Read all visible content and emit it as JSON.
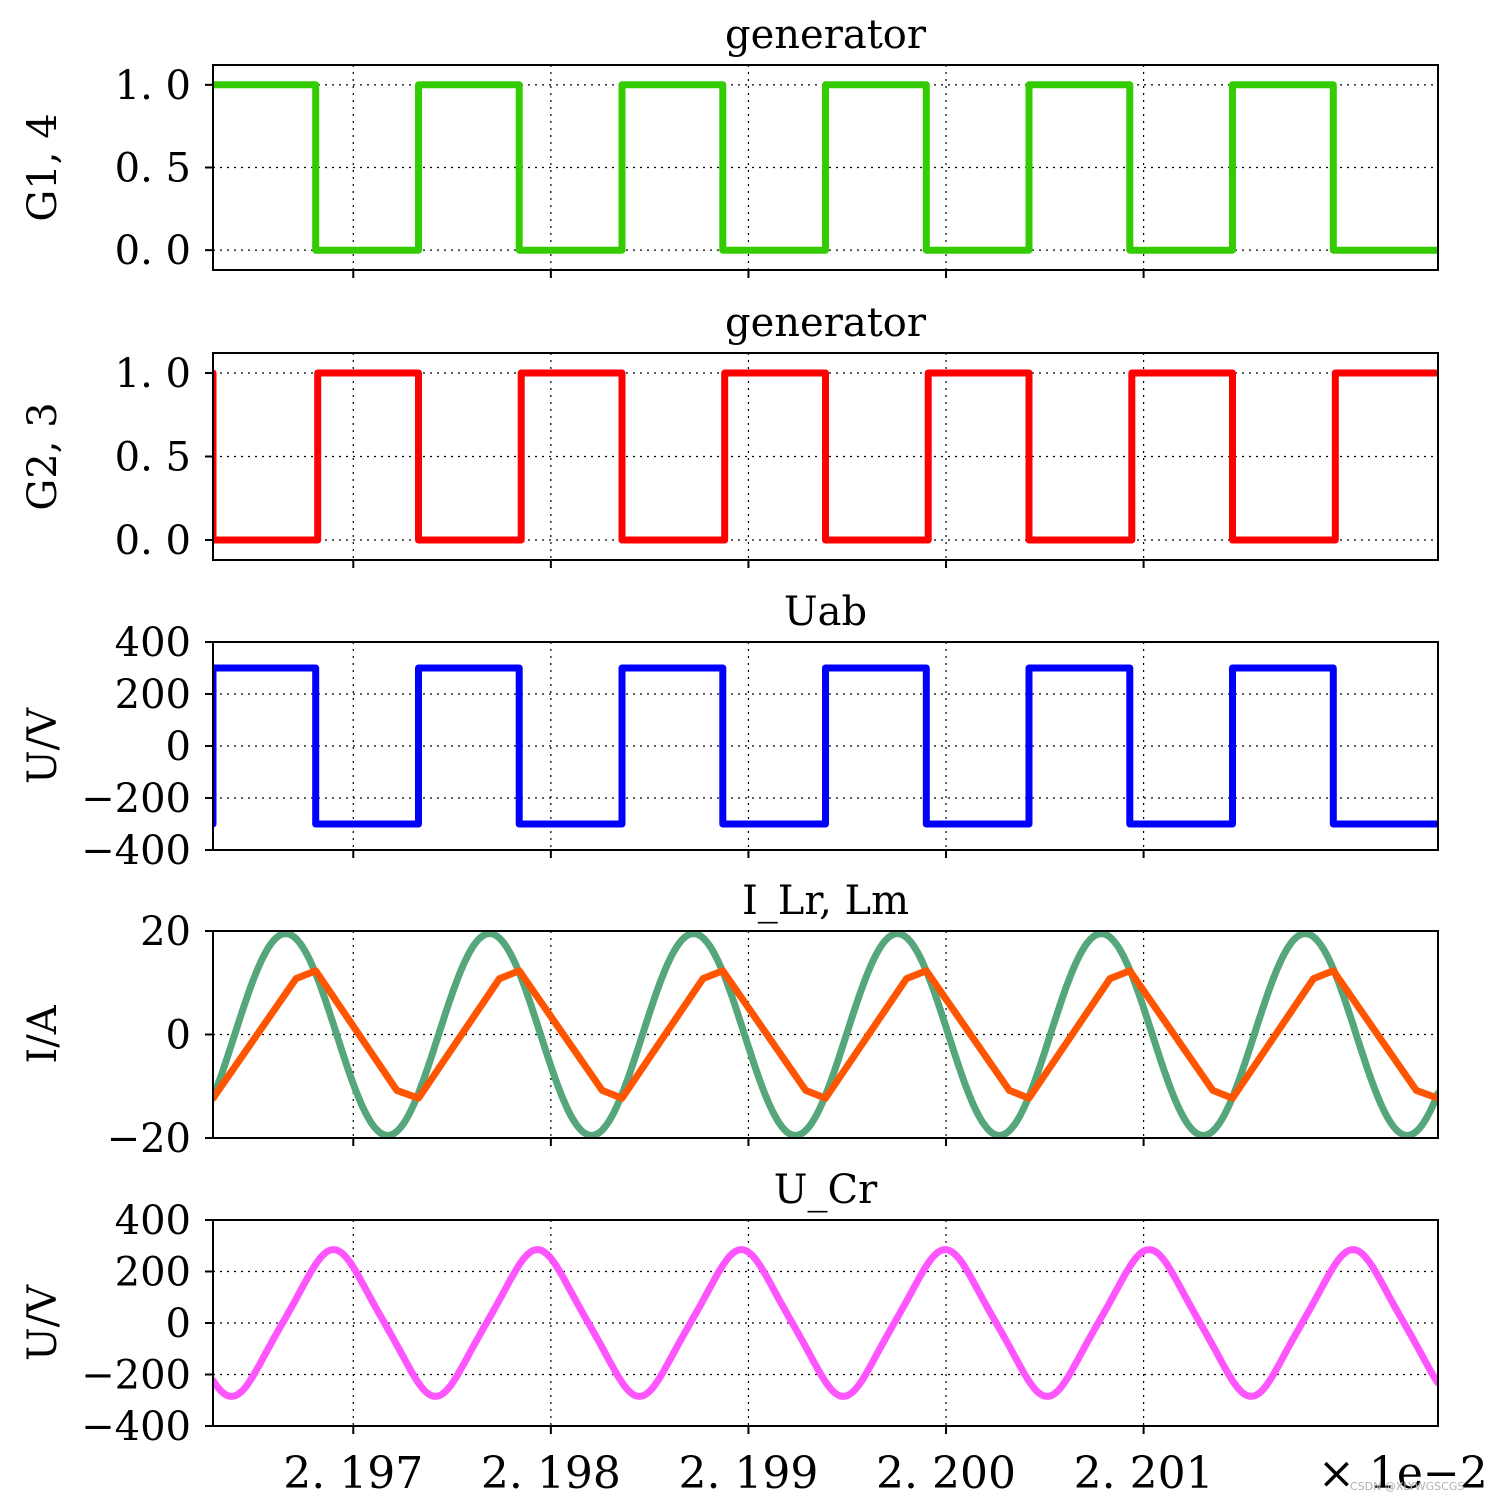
{
  "chart_data": [
    {
      "type": "line",
      "title": "generator",
      "ylabel": "G1, 4",
      "xlim": [
        2.19629,
        2.20249
      ],
      "ylim": [
        -0.12,
        1.12
      ],
      "yticks": [
        0.0,
        0.5,
        1.0
      ],
      "ytick_labels": [
        "0. 0",
        "0. 5",
        "1. 0"
      ],
      "grid": true,
      "series": [
        {
          "color": "#33cc00",
          "x": [
            2.19629,
            2.19681,
            2.19681,
            2.19733,
            2.19733,
            2.19784,
            2.19784,
            2.19836,
            2.19836,
            2.19887,
            2.19887,
            2.19939,
            2.19939,
            2.1999,
            2.1999,
            2.20042,
            2.20042,
            2.20093,
            2.20093,
            2.20145,
            2.20145,
            2.20196,
            2.20196,
            2.20249
          ],
          "y": [
            1,
            1,
            0,
            0,
            1,
            1,
            0,
            0,
            1,
            1,
            0,
            0,
            1,
            1,
            0,
            0,
            1,
            1,
            0,
            0,
            1,
            1,
            0,
            0
          ]
        }
      ]
    },
    {
      "type": "line",
      "title": "generator",
      "ylabel": "G2, 3",
      "xlim": [
        2.19629,
        2.20249
      ],
      "ylim": [
        -0.12,
        1.12
      ],
      "yticks": [
        0.0,
        0.5,
        1.0
      ],
      "ytick_labels": [
        "0. 0",
        "0. 5",
        "1. 0"
      ],
      "grid": true,
      "series": [
        {
          "color": "#ff0000",
          "x": [
            2.19629,
            2.19629,
            2.19682,
            2.19682,
            2.19733,
            2.19733,
            2.19785,
            2.19785,
            2.19836,
            2.19836,
            2.19888,
            2.19888,
            2.19939,
            2.19939,
            2.19991,
            2.19991,
            2.20042,
            2.20042,
            2.20094,
            2.20094,
            2.20145,
            2.20145,
            2.20197,
            2.20197,
            2.20249
          ],
          "y": [
            1,
            0,
            0,
            1,
            1,
            0,
            0,
            1,
            1,
            0,
            0,
            1,
            1,
            0,
            0,
            1,
            1,
            0,
            0,
            1,
            1,
            0,
            0,
            1,
            1
          ]
        }
      ]
    },
    {
      "type": "line",
      "title": "Uab",
      "ylabel": "U/V",
      "xlim": [
        2.19629,
        2.20249
      ],
      "ylim": [
        -400,
        400
      ],
      "yticks": [
        -400,
        -200,
        0,
        200,
        400
      ],
      "ytick_labels": [
        "−400",
        "−200",
        "0",
        "200",
        "400"
      ],
      "grid": true,
      "series": [
        {
          "color": "#0000ff",
          "x": [
            2.19629,
            2.19629,
            2.19681,
            2.19681,
            2.19733,
            2.19733,
            2.19784,
            2.19784,
            2.19836,
            2.19836,
            2.19887,
            2.19887,
            2.19939,
            2.19939,
            2.1999,
            2.1999,
            2.20042,
            2.20042,
            2.20093,
            2.20093,
            2.20145,
            2.20145,
            2.20196,
            2.20196,
            2.20249
          ],
          "y": [
            -300,
            300,
            300,
            -300,
            -300,
            300,
            300,
            -300,
            -300,
            300,
            300,
            -300,
            -300,
            300,
            300,
            -300,
            -300,
            300,
            300,
            -300,
            -300,
            300,
            300,
            -300,
            -300
          ]
        }
      ]
    },
    {
      "type": "line",
      "title": "I_Lr, Lm",
      "ylabel": "I/A",
      "xlim": [
        2.19629,
        2.20249
      ],
      "ylim": [
        -20,
        20
      ],
      "yticks": [
        -20,
        0,
        20
      ],
      "ytick_labels": [
        "−20",
        "0",
        "20"
      ],
      "grid": true,
      "series": [
        {
          "color": "#55a67a",
          "generator": "sine",
          "x_start": 2.19629,
          "x_end": 2.20249,
          "period": 0.001032,
          "phase_x": 2.1964,
          "amplitude": 19.5
        },
        {
          "color": "#ff5500",
          "x": [
            2.19629,
            2.19671,
            2.19681,
            2.19722,
            2.19733,
            2.19774,
            2.19784,
            2.19826,
            2.19836,
            2.19877,
            2.19887,
            2.19929,
            2.19939,
            2.1998,
            2.1999,
            2.20032,
            2.20042,
            2.20083,
            2.20093,
            2.20135,
            2.20145,
            2.20186,
            2.20196,
            2.20238,
            2.20249
          ],
          "y": [
            -12.3,
            10.8,
            12.3,
            -10.8,
            -12.3,
            10.8,
            12.3,
            -10.8,
            -12.3,
            10.8,
            12.3,
            -10.8,
            -12.3,
            10.8,
            12.3,
            -10.8,
            -12.3,
            10.8,
            12.3,
            -10.8,
            -12.3,
            10.8,
            12.3,
            -10.8,
            -12.3
          ]
        }
      ]
    },
    {
      "type": "line",
      "title": "U_Cr",
      "ylabel": "U/V",
      "xlim": [
        2.19629,
        2.20249
      ],
      "ylim": [
        -400,
        400
      ],
      "yticks": [
        -400,
        -200,
        0,
        200,
        400
      ],
      "ytick_labels": [
        "−400",
        "−200",
        "0",
        "200",
        "400"
      ],
      "grid": true,
      "xticks": [
        2.197,
        2.198,
        2.199,
        2.2,
        2.201
      ],
      "xtick_labels": [
        "2. 197",
        "2. 198",
        "2. 199",
        "2. 200",
        "2. 201"
      ],
      "x_multiplier_label": "× 1e−2",
      "series": [
        {
          "color": "#ff55ff",
          "generator": "resonant",
          "x_start": 2.19629,
          "x_end": 2.20249,
          "period": 0.001032,
          "peak_x": 2.1969,
          "amplitude": 285
        }
      ]
    }
  ],
  "watermark": "CSDN @XLYWGSCGS"
}
